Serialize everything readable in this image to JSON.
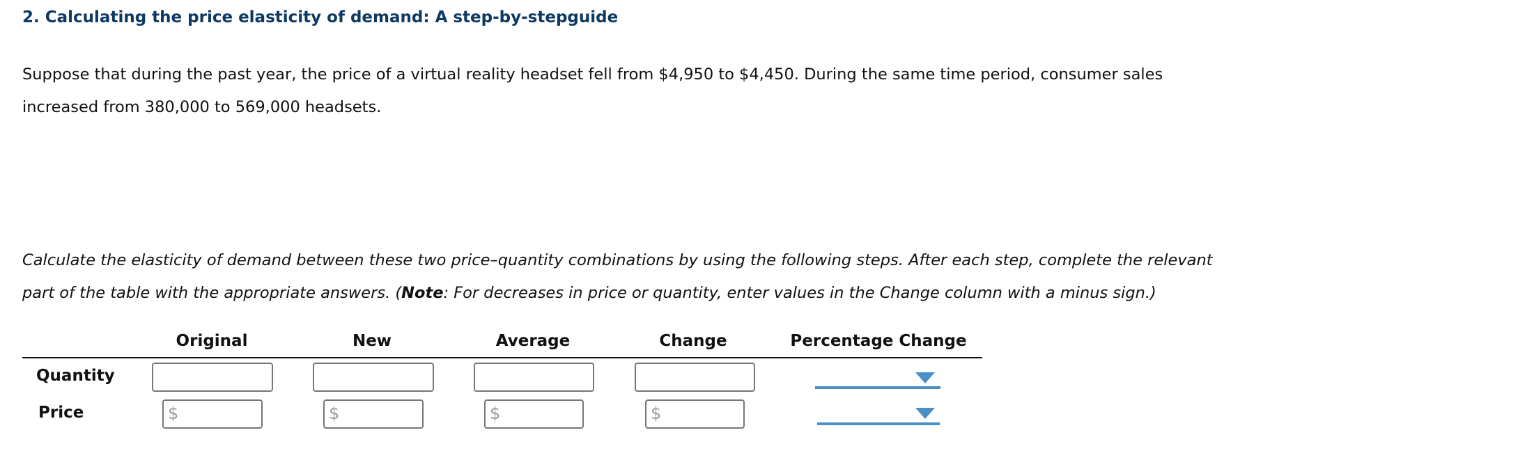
{
  "title": "2. Calculating the price elasticity of demand: A step-by-stepguide",
  "intro": {
    "line1": "Suppose that during the past year, the price of a virtual reality headset fell from $4,950 to $4,450. During the same time period, consumer sales",
    "line2": "increased from 380,000 to 569,000 headsets."
  },
  "instructions": {
    "line1": "Calculate the elasticity of demand between these two price–quantity combinations by using the following steps. After each step, complete the relevant",
    "line2_pre": "part of the table with the appropriate answers. (",
    "line2_note": "Note",
    "line2_post": ": For decreases in price or quantity, enter values in the Change column with a minus sign.)"
  },
  "table": {
    "headers": [
      "Original",
      "New",
      "Average",
      "Change",
      "Percentage Change"
    ],
    "rows": [
      {
        "label": "Quantity",
        "values": [
          "",
          "",
          "",
          ""
        ],
        "prefix": "",
        "percentage_change": ""
      },
      {
        "label": "Price",
        "values": [
          "",
          "",
          "",
          ""
        ],
        "prefix": "$",
        "percentage_change": ""
      }
    ]
  },
  "colors": {
    "title": "#0d3963",
    "dropdown_accent": "#4a8fc6"
  },
  "icons": {
    "dropdown": "triangle-down-icon"
  }
}
